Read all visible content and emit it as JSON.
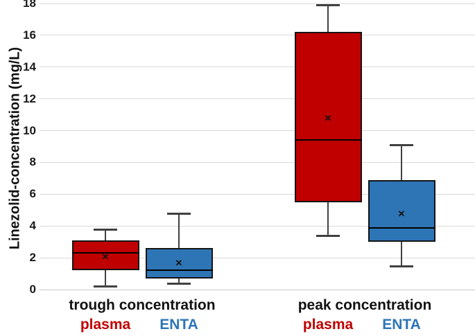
{
  "chart_data": {
    "type": "boxplot",
    "ylabel": "Linezolid-concentration (mg/L)",
    "ylim": [
      0,
      18
    ],
    "yticks": [
      0,
      2,
      4,
      6,
      8,
      10,
      12,
      14,
      16,
      18
    ],
    "grid": "horizontal",
    "legend_position": "below-x-axis",
    "mean_marker_symbol": "✕",
    "colors": {
      "plasma": "#C00000",
      "ENTA": "#2E75B6",
      "gridline": "#D9D9D9",
      "whisker": "#404040",
      "text": "#111111"
    },
    "groups": [
      {
        "label": "trough concentration",
        "series": [
          {
            "name": "plasma",
            "color": "#C00000",
            "min": 0.2,
            "q1": 1.2,
            "median": 2.3,
            "mean": 2.1,
            "q3": 3.1,
            "max": 3.8
          },
          {
            "name": "ENTA",
            "color": "#2E75B6",
            "min": 0.4,
            "q1": 0.7,
            "median": 1.2,
            "mean": 1.7,
            "q3": 2.6,
            "max": 4.8
          }
        ]
      },
      {
        "label": "peak concentration",
        "series": [
          {
            "name": "plasma",
            "color": "#C00000",
            "min": 3.4,
            "q1": 5.5,
            "median": 9.4,
            "mean": 10.8,
            "q3": 16.2,
            "max": 17.9
          },
          {
            "name": "ENTA",
            "color": "#2E75B6",
            "min": 1.5,
            "q1": 3.0,
            "median": 3.9,
            "mean": 4.8,
            "q3": 6.9,
            "max": 9.1
          }
        ]
      }
    ]
  }
}
